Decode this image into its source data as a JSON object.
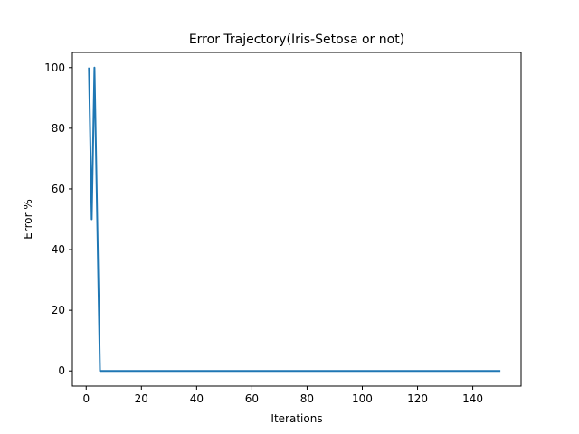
{
  "chart_data": {
    "type": "line",
    "title": "Error Trajectory(Iris-Setosa or not)",
    "xlabel": "Iterations",
    "ylabel": "Error %",
    "xlim": [
      -5,
      157.5
    ],
    "ylim": [
      -5,
      105
    ],
    "xticks": [
      0,
      20,
      40,
      60,
      80,
      100,
      120,
      140
    ],
    "yticks": [
      0,
      20,
      40,
      60,
      80,
      100
    ],
    "grid": false,
    "series": [
      {
        "color": "#1f77b4",
        "x": [
          1,
          2,
          3,
          4,
          5,
          150
        ],
        "y": [
          100,
          50,
          100,
          50,
          0,
          0
        ]
      }
    ]
  }
}
